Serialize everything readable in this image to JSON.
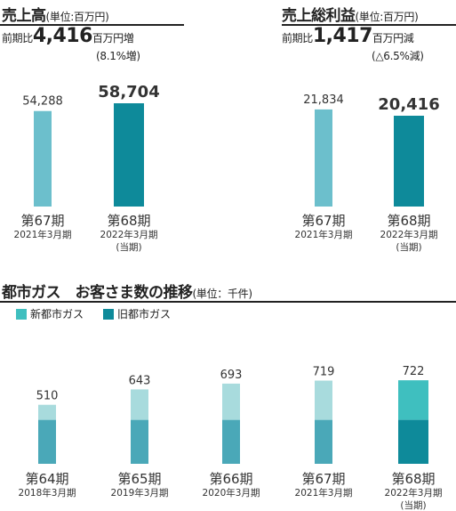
{
  "sales": {
    "title": "売上高",
    "unit": "(単位:百万円)",
    "compare_prefix": "前期比",
    "compare_value": "4,416",
    "compare_suffix": "百万円増",
    "compare_pct": "(8.1%増)"
  },
  "gross_profit": {
    "title": "売上総利益",
    "unit": "(単位:百万円)",
    "compare_prefix": "前期比",
    "compare_value": "1,417",
    "compare_suffix": "百万円減",
    "compare_pct": "(△6.5%減)"
  },
  "gas": {
    "title": "都市ガス　お客さま数の推移",
    "unit": "(単位：千件)",
    "legend_new": "新都市ガス",
    "legend_old": "旧都市ガス"
  },
  "chart_data": [
    {
      "type": "bar",
      "title": "売上高",
      "categories": [
        "第67期",
        "第68期"
      ],
      "sublabels": [
        "2021年3月期",
        "2022年3月期"
      ],
      "sublabels2": [
        "",
        "(当期)"
      ],
      "values": [
        54288,
        58704
      ],
      "value_labels": [
        "54,288",
        "58,704"
      ],
      "colors": [
        "#6cbfcc",
        "#0e8a9a"
      ]
    },
    {
      "type": "bar",
      "title": "売上総利益",
      "categories": [
        "第67期",
        "第68期"
      ],
      "sublabels": [
        "2021年3月期",
        "2022年3月期"
      ],
      "sublabels2": [
        "",
        "(当期)"
      ],
      "values": [
        21834,
        20416
      ],
      "value_labels": [
        "21,834",
        "20,416"
      ],
      "colors": [
        "#6cbfcc",
        "#0e8a9a"
      ]
    },
    {
      "type": "bar",
      "stacked": true,
      "title": "都市ガス　お客さま数の推移",
      "categories": [
        "第64期",
        "第65期",
        "第66期",
        "第67期",
        "第68期"
      ],
      "sublabels": [
        "2018年3月期",
        "2019年3月期",
        "2020年3月期",
        "2021年3月期",
        "2022年3月期"
      ],
      "sublabels2": [
        "",
        "",
        "",
        "",
        "(当期)"
      ],
      "totals": [
        510,
        643,
        693,
        719,
        722
      ],
      "series": [
        {
          "name": "旧都市ガス",
          "values": [
            380,
            380,
            380,
            380,
            380
          ]
        },
        {
          "name": "新都市ガス",
          "values": [
            130,
            263,
            313,
            339,
            342
          ]
        }
      ],
      "colors_new": [
        "#a8dbdd",
        "#a8dbdd",
        "#a8dbdd",
        "#a8dbdd",
        "#3fbfbf"
      ],
      "colors_old": [
        "#4aa8b8",
        "#4aa8b8",
        "#4aa8b8",
        "#4aa8b8",
        "#0e8a9a"
      ]
    }
  ]
}
